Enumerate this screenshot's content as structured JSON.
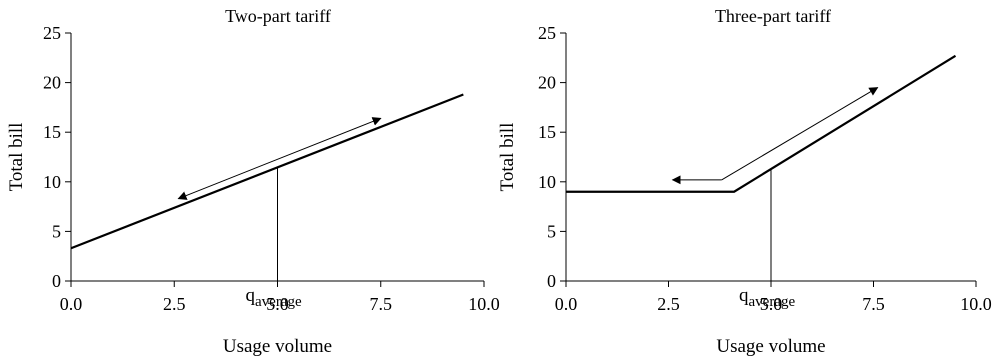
{
  "chart_data": [
    {
      "type": "line",
      "title": "Two-part tariff",
      "xlabel": "Usage volume",
      "ylabel": "Total bill",
      "xlim": [
        0,
        10
      ],
      "ylim": [
        0,
        25
      ],
      "x_ticks": [
        "0.0",
        "2.5",
        "5.0",
        "7.5",
        "10.0"
      ],
      "y_ticks": [
        "0",
        "5",
        "10",
        "15",
        "20",
        "25"
      ],
      "grid": false,
      "series": [
        {
          "x": [
            0,
            9.5
          ],
          "y": [
            3.3,
            18.8
          ]
        }
      ],
      "annotations": {
        "marker": {
          "x": 5.0,
          "label_main": "q",
          "label_sub": "average"
        },
        "arrows": [
          {
            "from": [
              7.5,
              16.4
            ],
            "to": [
              2.6,
              8.3
            ],
            "heads": "both"
          }
        ]
      }
    },
    {
      "type": "line",
      "title": "Three-part tariff",
      "xlabel": "Usage volume",
      "ylabel": "Total bill",
      "xlim": [
        0,
        10
      ],
      "ylim": [
        0,
        25
      ],
      "x_ticks": [
        "0.0",
        "2.5",
        "5.0",
        "7.5",
        "10.0"
      ],
      "y_ticks": [
        "0",
        "5",
        "10",
        "15",
        "20",
        "25"
      ],
      "grid": false,
      "series": [
        {
          "x": [
            0,
            4.1,
            9.5
          ],
          "y": [
            9.0,
            9.0,
            22.7
          ]
        }
      ],
      "annotations": {
        "marker": {
          "x": 5.0,
          "label_main": "q",
          "label_sub": "average"
        },
        "arrows": [
          {
            "from": [
              3.8,
              10.2
            ],
            "to": [
              2.6,
              10.2
            ],
            "heads": "end"
          },
          {
            "from": [
              3.8,
              10.2
            ],
            "to": [
              7.6,
              19.5
            ],
            "heads": "end"
          }
        ]
      }
    }
  ]
}
